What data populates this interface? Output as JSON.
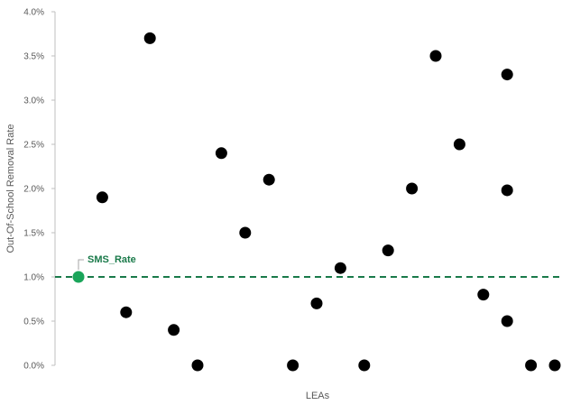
{
  "chart_data": {
    "type": "scatter",
    "title": "",
    "xlabel": "LEAs",
    "ylabel": "Out-Of-School Removal Rate",
    "ylim": [
      0,
      4.0
    ],
    "y_ticks": [
      "0.0%",
      "0.5%",
      "1.0%",
      "1.5%",
      "2.0%",
      "2.5%",
      "3.0%",
      "3.5%",
      "4.0%"
    ],
    "grid": false,
    "legend": "none",
    "series": [
      {
        "color": "#000000",
        "points": [
          {
            "x": 2,
            "y": 1.9
          },
          {
            "x": 3,
            "y": 0.6
          },
          {
            "x": 4,
            "y": 3.7
          },
          {
            "x": 5,
            "y": 0.4
          },
          {
            "x": 6,
            "y": 0.0
          },
          {
            "x": 7,
            "y": 2.4
          },
          {
            "x": 8,
            "y": 1.5
          },
          {
            "x": 9,
            "y": 2.1
          },
          {
            "x": 10,
            "y": 0.0
          },
          {
            "x": 11,
            "y": 0.7
          },
          {
            "x": 12,
            "y": 1.1
          },
          {
            "x": 13,
            "y": 0.0
          },
          {
            "x": 14,
            "y": 1.3
          },
          {
            "x": 15,
            "y": 2.0
          },
          {
            "x": 16,
            "y": 3.5
          },
          {
            "x": 17,
            "y": 2.5
          },
          {
            "x": 18,
            "y": 0.8
          },
          {
            "x": 19,
            "y": 3.29
          },
          {
            "x": 19,
            "y": 1.98
          },
          {
            "x": 19,
            "y": 0.5
          },
          {
            "x": 20,
            "y": 0.0
          },
          {
            "x": 21,
            "y": 0.0
          }
        ]
      }
    ],
    "reference": {
      "name": "SMS_Rate",
      "x": 1,
      "y": 1.0,
      "color": "#1aa55a",
      "line_color": "#1a7a4a"
    }
  }
}
